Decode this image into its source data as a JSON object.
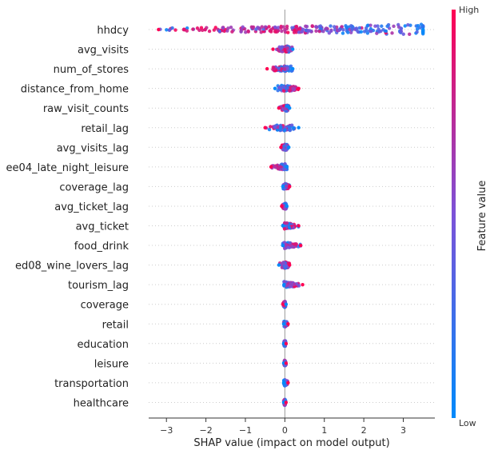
{
  "chart_data": {
    "type": "scatter",
    "subtype": "shap-beeswarm",
    "xlabel": "SHAP value (impact on model output)",
    "xlim": [
      -3.45,
      3.8
    ],
    "xticks": [
      -3,
      -2,
      -1,
      0,
      1,
      2,
      3
    ],
    "colorbar": {
      "label": "Feature value",
      "high_label": "High",
      "low_label": "Low",
      "low_color": "#008afb",
      "high_color": "#ff0052"
    },
    "features": [
      {
        "name": "hhdcy",
        "min": -3.2,
        "max": 3.5,
        "low_center": 3.3,
        "high_center": -1.5
      },
      {
        "name": "avg_visits",
        "min": -0.3,
        "max": 0.2,
        "low_center": 0.05,
        "high_center": -0.05
      },
      {
        "name": "num_of_stores",
        "min": -0.45,
        "max": 0.2,
        "low_center": 0.05,
        "high_center": -0.2
      },
      {
        "name": "distance_from_home",
        "min": -0.25,
        "max": 0.35,
        "low_center": -0.05,
        "high_center": 0.2
      },
      {
        "name": "raw_visit_counts",
        "min": -0.15,
        "max": 0.12,
        "low_center": 0.05,
        "high_center": -0.05
      },
      {
        "name": "retail_lag",
        "min": -0.5,
        "max": 0.35,
        "low_center": 0.02,
        "high_center": -0.15
      },
      {
        "name": "avg_visits_lag",
        "min": -0.1,
        "max": 0.1,
        "low_center": 0.02,
        "high_center": -0.03
      },
      {
        "name": "ee04_late_night_leisure",
        "min": -0.35,
        "max": 0.05,
        "low_center": 0.01,
        "high_center": -0.15
      },
      {
        "name": "coverage_lag",
        "min": -0.05,
        "max": 0.12,
        "low_center": 0.0,
        "high_center": 0.07
      },
      {
        "name": "avg_ticket_lag",
        "min": -0.08,
        "max": 0.05,
        "low_center": 0.01,
        "high_center": -0.03
      },
      {
        "name": "avg_ticket",
        "min": -0.05,
        "max": 0.35,
        "low_center": 0.0,
        "high_center": 0.2
      },
      {
        "name": "food_drink",
        "min": -0.05,
        "max": 0.4,
        "low_center": 0.0,
        "high_center": 0.2
      },
      {
        "name": "ed08_wine_lovers_lag",
        "min": -0.15,
        "max": 0.12,
        "low_center": 0.0,
        "high_center": 0.05
      },
      {
        "name": "tourism_lag",
        "min": -0.02,
        "max": 0.45,
        "low_center": 0.0,
        "high_center": 0.25
      },
      {
        "name": "coverage",
        "min": -0.05,
        "max": 0.03,
        "low_center": 0.0,
        "high_center": -0.02
      },
      {
        "name": "retail",
        "min": -0.03,
        "max": 0.08,
        "low_center": 0.0,
        "high_center": 0.05
      },
      {
        "name": "education",
        "min": -0.03,
        "max": 0.03,
        "low_center": 0.0,
        "high_center": 0.0
      },
      {
        "name": "leisure",
        "min": -0.03,
        "max": 0.03,
        "low_center": 0.0,
        "high_center": 0.0
      },
      {
        "name": "transportation",
        "min": -0.03,
        "max": 0.08,
        "low_center": 0.0,
        "high_center": 0.05
      },
      {
        "name": "healthcare",
        "min": -0.03,
        "max": 0.03,
        "low_center": 0.0,
        "high_center": 0.0
      }
    ]
  }
}
